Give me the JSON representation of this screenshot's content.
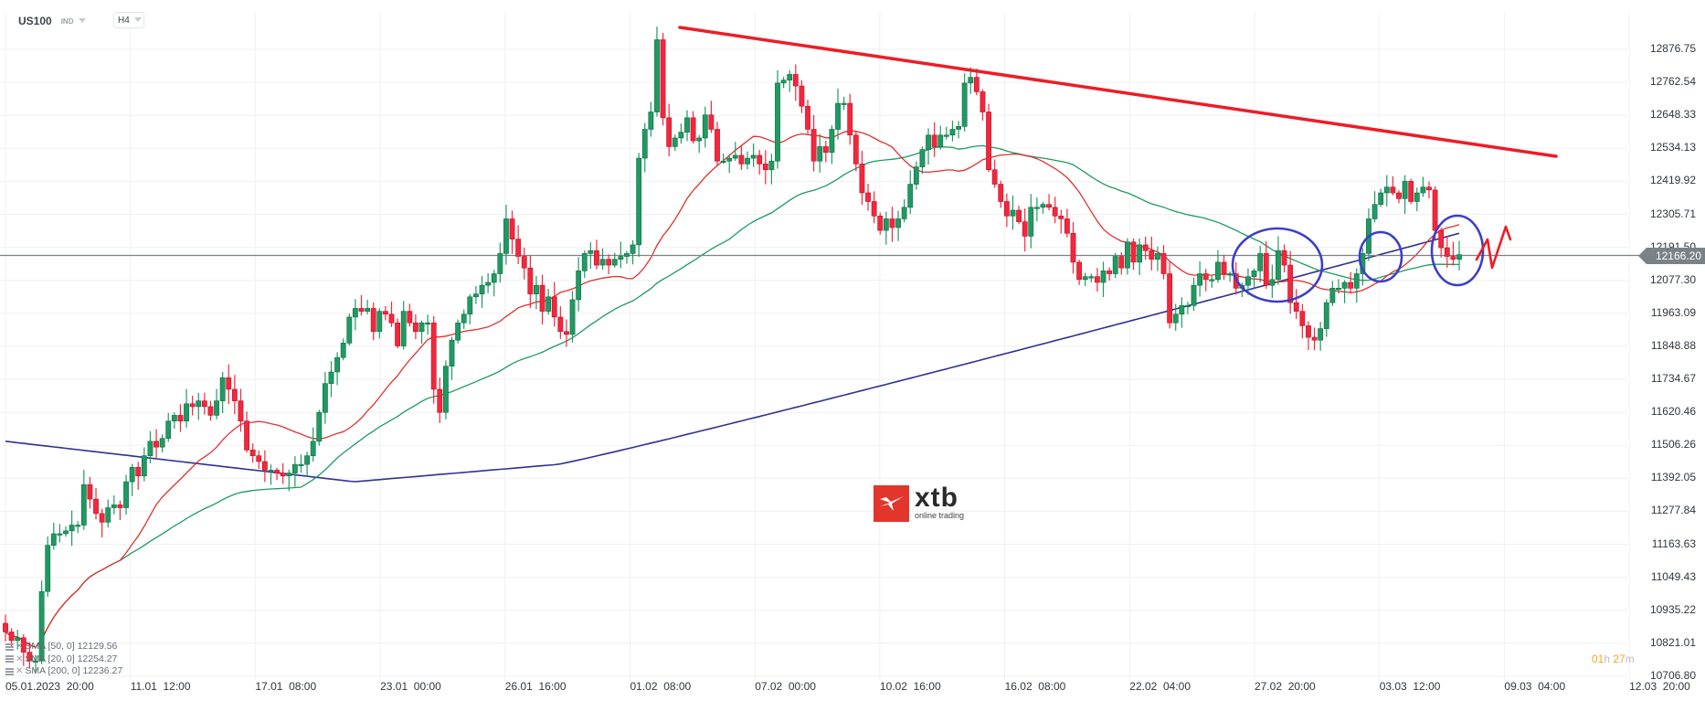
{
  "toolbar": {
    "symbol": "US100",
    "market": "IND",
    "timeframe": "H4"
  },
  "price_axis": {
    "ticks": [
      "12876.75",
      "12762.54",
      "12648.33",
      "12534.13",
      "12419.92",
      "12305.71",
      "12191.50",
      "12077.30",
      "11963.09",
      "11848.88",
      "11734.67",
      "11620.46",
      "11506.26",
      "11392.05",
      "11277.84",
      "11163.63",
      "11049.43",
      "10935.22",
      "10821.01",
      "10706.80"
    ],
    "current_price": "12166.20"
  },
  "time_axis": {
    "ticks": [
      "05.01.2023  20:00",
      "11.01  12:00",
      "17.01  08:00",
      "23.01  00:00",
      "26.01  16:00",
      "01.02  08:00",
      "07.02  00:00",
      "10.02  16:00",
      "16.02  08:00",
      "22.02  04:00",
      "27.02  20:00",
      "03.03  12:00",
      "09.03  04:00",
      "12.03  20:00"
    ]
  },
  "indicators": [
    {
      "label": "SMA  [50,  0]",
      "value": "12129.56",
      "color": "#1f9a62"
    },
    {
      "label": "SMA  [20,  0]",
      "value": "12254.27",
      "color": "#e0312f"
    },
    {
      "label": "SMA  [200,  0]",
      "value": "12236.27",
      "color": "#2e3192"
    }
  ],
  "candle_timer": {
    "hours": "01",
    "hours_unit": "h",
    "minutes": "27",
    "minutes_unit": "m"
  },
  "logo": {
    "word": "xtb",
    "tagline": "online trading"
  },
  "colors": {
    "bull": "#1f9a62",
    "bear": "#f5263b",
    "sma20": "#e0312f",
    "sma50": "#1f9a62",
    "sma200": "#2e3192",
    "trendline": "#ee1c25",
    "annotation_circles": "#3c3fc6",
    "grid": "#f0f0f0",
    "price_line": "#7a8288",
    "timer": "#f5a623"
  },
  "chart_data": {
    "type": "candlestick",
    "title": "US100 H4",
    "xlabel": "",
    "ylabel": "",
    "ylim": [
      10706.8,
      12876.75
    ],
    "grid": true,
    "current_price": 12166.2,
    "x_ticks": [
      "05.01.2023 20:00",
      "11.01 12:00",
      "17.01 08:00",
      "23.01 00:00",
      "26.01 16:00",
      "01.02 08:00",
      "07.02 00:00",
      "10.02 16:00",
      "16.02 08:00",
      "22.02 04:00",
      "27.02 20:00",
      "03.03 12:00",
      "09.03 04:00",
      "12.03 20:00"
    ],
    "y_ticks": [
      12876.75,
      12762.54,
      12648.33,
      12534.13,
      12419.92,
      12305.71,
      12191.5,
      12077.3,
      11963.09,
      11848.88,
      11734.67,
      11620.46,
      11506.26,
      11392.05,
      11277.84,
      11163.63,
      11049.43,
      10935.22,
      10821.01,
      10706.8
    ],
    "close_path": [
      10860,
      10830,
      10840,
      10790,
      10760,
      10760,
      11000,
      11160,
      11200,
      11200,
      11210,
      11230,
      11230,
      11370,
      11320,
      11270,
      11240,
      11290,
      11300,
      11290,
      11380,
      11430,
      11400,
      11470,
      11520,
      11500,
      11530,
      11590,
      11610,
      11590,
      11650,
      11640,
      11660,
      11640,
      11610,
      11660,
      11740,
      11700,
      11660,
      11590,
      11490,
      11470,
      11450,
      11420,
      11420,
      11410,
      11400,
      11410,
      11440,
      11440,
      11470,
      11520,
      11620,
      11720,
      11760,
      11810,
      11860,
      11950,
      11980,
      11970,
      11980,
      11900,
      11970,
      11960,
      11930,
      11850,
      11970,
      11930,
      11900,
      11930,
      11930,
      11700,
      11620,
      11780,
      11870,
      11930,
      11960,
      12020,
      12030,
      12060,
      12070,
      12100,
      12170,
      12290,
      12220,
      12160,
      12120,
      12030,
      12060,
      11970,
      12020,
      11950,
      11900,
      11890,
      12010,
      12110,
      12170,
      12180,
      12130,
      12150,
      12130,
      12150,
      12160,
      12170,
      12200,
      12500,
      12600,
      12660,
      12910,
      12640,
      12540,
      12570,
      12590,
      12640,
      12560,
      12570,
      12650,
      12600,
      12490,
      12490,
      12500,
      12510,
      12480,
      12500,
      12510,
      12480,
      12460,
      12490,
      12760,
      12770,
      12790,
      12750,
      12680,
      12600,
      12490,
      12540,
      12520,
      12600,
      12690,
      12690,
      12580,
      12480,
      12380,
      12350,
      12300,
      12250,
      12290,
      12260,
      12290,
      12330,
      12410,
      12470,
      12530,
      12580,
      12540,
      12580,
      12580,
      12600,
      12610,
      12760,
      12780,
      12730,
      12660,
      12460,
      12410,
      12350,
      12300,
      12320,
      12280,
      12230,
      12330,
      12330,
      12340,
      12330,
      12300,
      12290,
      12240,
      12140,
      12080,
      12090,
      12090,
      12070,
      12110,
      12100,
      12160,
      12120,
      12210,
      12140,
      12200,
      12180,
      12150,
      12170,
      12100,
      11930,
      11960,
      11990,
      11990,
      12060,
      12100,
      12080,
      12080,
      12140,
      12100,
      12100,
      12050,
      12060,
      12090,
      12110,
      12170,
      12060,
      12080,
      12180,
      12130,
      12000,
      11970,
      11920,
      11880,
      11870,
      11910,
      12000,
      12050,
      12050,
      12070,
      12050,
      12100,
      12170,
      12290,
      12340,
      12380,
      12400,
      12380,
      12360,
      12420,
      12350,
      12380,
      12400,
      12390,
      12250,
      12190,
      12160,
      12150,
      12166
    ]
  }
}
